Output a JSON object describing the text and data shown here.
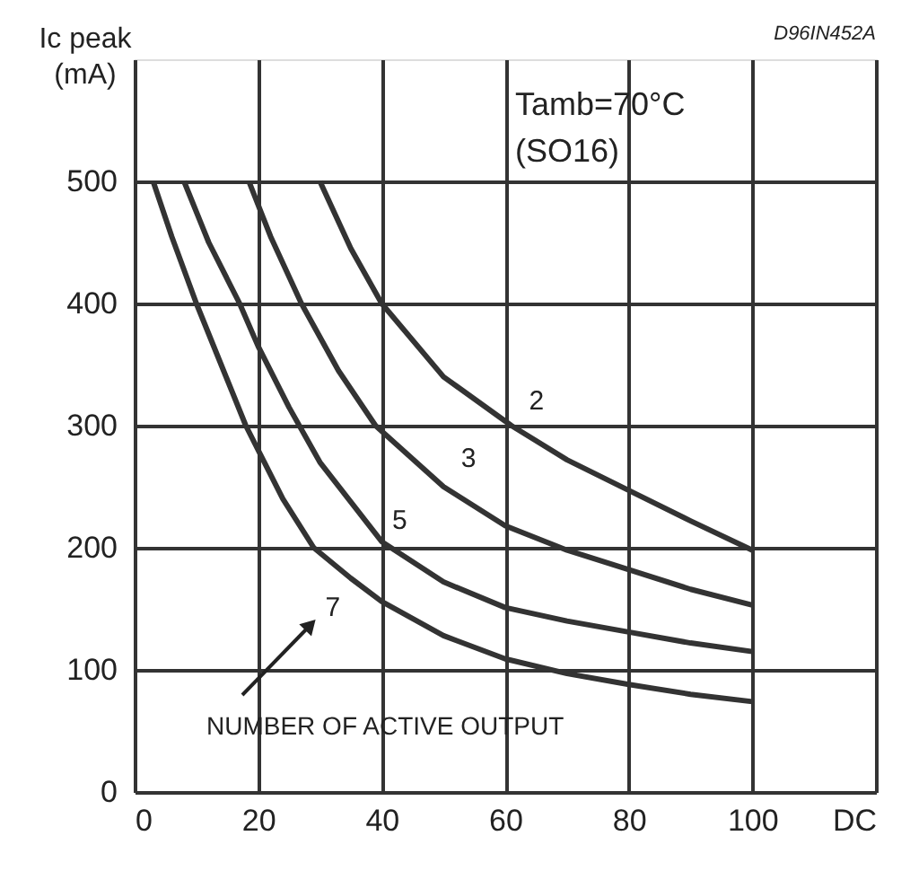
{
  "chart_data": {
    "type": "line",
    "ylabel": "Ic peak (mA)",
    "xlim": [
      0,
      120
    ],
    "xticks": [
      0,
      20,
      40,
      60,
      80,
      100,
      {
        "value": 120,
        "label": "DC"
      }
    ],
    "ylim": [
      0,
      600
    ],
    "yticks": [
      0,
      100,
      200,
      300,
      400,
      500
    ],
    "grid": true,
    "legend": false,
    "marker": "none",
    "line_style": "solid",
    "annotations": [
      "Tamb=70°C",
      "(SO16)",
      "NUMBER OF ACTIVE OUTPUT",
      "D96IN452A"
    ],
    "series": [
      {
        "name": "2",
        "color": "#333333",
        "x": [
          30,
          35,
          40,
          50,
          61,
          70,
          80,
          90,
          100
        ],
        "values": [
          500,
          445,
          400,
          340,
          300,
          272,
          247,
          222,
          198
        ]
      },
      {
        "name": "3",
        "color": "#333333",
        "x": [
          18.5,
          22,
          27,
          33,
          39,
          50,
          60,
          70,
          80,
          90,
          100
        ],
        "values": [
          500,
          455,
          400,
          345,
          300,
          250,
          218,
          198,
          182,
          166,
          153
        ]
      },
      {
        "name": "5",
        "color": "#333333",
        "x": [
          8,
          12,
          17,
          20,
          25,
          30,
          40,
          50,
          60,
          70,
          80,
          90,
          100
        ],
        "values": [
          500,
          450,
          400,
          365,
          315,
          270,
          205,
          172,
          151,
          140,
          131,
          122,
          115
        ]
      },
      {
        "name": "7",
        "color": "#333333",
        "x": [
          3,
          6,
          10,
          14,
          18,
          24,
          29,
          35,
          40,
          50,
          60,
          70,
          80,
          90,
          100
        ],
        "values": [
          500,
          455,
          400,
          350,
          300,
          240,
          200,
          175,
          156,
          128,
          109,
          97,
          88,
          80,
          74
        ]
      }
    ]
  }
}
